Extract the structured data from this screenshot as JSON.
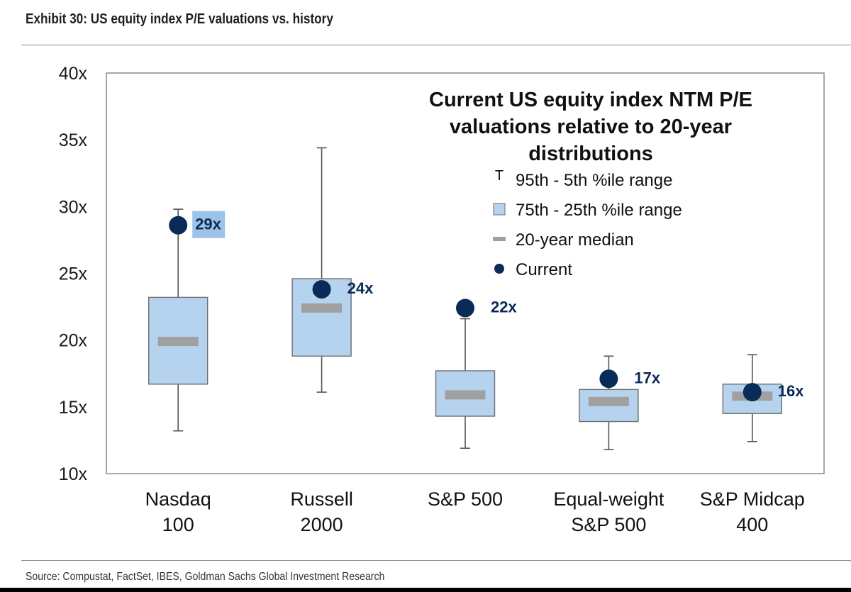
{
  "exhibit_title": "Exhibit 30: US equity index P/E valuations vs. history",
  "source": "Source: Compustat, FactSet, IBES, Goldman Sachs Global Investment Research",
  "colors": {
    "box_fill": "#b5d3ee",
    "box_stroke": "#6f6f6f",
    "median": "#a0a0a0",
    "current": "#0a2a57",
    "label": "#0a2a57",
    "highlight": "#9dc3e6",
    "whisker": "#555555",
    "axis_text": "#1a1a1a"
  },
  "chart_data": {
    "type": "box",
    "title": "Current US equity index NTM P/E valuations relative to 20-year distributions",
    "title_lines": [
      "Current US equity index NTM P/E",
      "valuations relative to 20-year",
      "distributions"
    ],
    "ylim": [
      10,
      40
    ],
    "yticks": [
      10,
      15,
      20,
      25,
      30,
      35,
      40
    ],
    "ytick_labels": [
      "10x",
      "15x",
      "20x",
      "25x",
      "30x",
      "35x",
      "40x"
    ],
    "legend": [
      {
        "symbol": "T",
        "label": "95th - 5th %ile range"
      },
      {
        "symbol": "box",
        "label": "75th - 25th %ile range"
      },
      {
        "symbol": "median",
        "label": "20-year median"
      },
      {
        "symbol": "dot",
        "label": "Current"
      }
    ],
    "legend_position": "top-right",
    "series": [
      {
        "category": "Nasdaq 100",
        "category_lines": [
          "Nasdaq",
          "100"
        ],
        "p5": 13.2,
        "p25": 16.7,
        "median": 19.9,
        "p75": 23.2,
        "p95": 29.8,
        "current": 28.6,
        "current_label": "29x",
        "label_highlight": true
      },
      {
        "category": "Russell 2000",
        "category_lines": [
          "Russell",
          "2000"
        ],
        "p5": 16.1,
        "p25": 18.8,
        "median": 22.4,
        "p75": 24.6,
        "p95": 34.4,
        "current": 23.8,
        "current_label": "24x",
        "label_highlight": false
      },
      {
        "category": "S&P 500",
        "category_lines": [
          "S&P 500"
        ],
        "p5": 11.9,
        "p25": 14.3,
        "median": 15.9,
        "p75": 17.7,
        "p95": 21.6,
        "current": 22.4,
        "current_label": "22x",
        "label_highlight": false
      },
      {
        "category": "Equal-weight S&P 500",
        "category_lines": [
          "Equal-weight",
          "S&P 500"
        ],
        "p5": 11.8,
        "p25": 13.9,
        "median": 15.4,
        "p75": 16.3,
        "p95": 18.8,
        "current": 17.1,
        "current_label": "17x",
        "label_highlight": false
      },
      {
        "category": "S&P Midcap 400",
        "category_lines": [
          "S&P Midcap",
          "400"
        ],
        "p5": 12.4,
        "p25": 14.5,
        "median": 15.8,
        "p75": 16.7,
        "p95": 18.9,
        "current": 16.1,
        "current_label": "16x",
        "label_highlight": false
      }
    ]
  }
}
